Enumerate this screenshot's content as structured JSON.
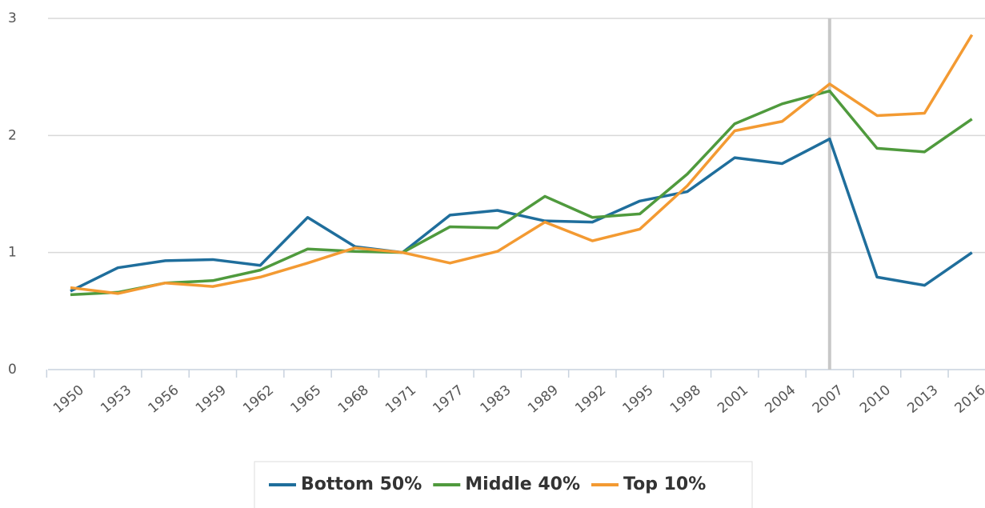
{
  "chart_data": {
    "type": "line",
    "categories": [
      "1950",
      "1953",
      "1956",
      "1959",
      "1962",
      "1965",
      "1968",
      "1971",
      "1977",
      "1983",
      "1989",
      "1992",
      "1995",
      "1998",
      "2001",
      "2004",
      "2007",
      "2010",
      "2013",
      "2016"
    ],
    "series": [
      {
        "name": "Bottom 50%",
        "color": "#1f6e9c",
        "values": [
          0.67,
          0.87,
          0.93,
          0.94,
          0.89,
          1.3,
          1.05,
          1.0,
          1.32,
          1.36,
          1.27,
          1.26,
          1.44,
          1.52,
          1.81,
          1.76,
          1.97,
          0.79,
          0.72,
          1.0
        ]
      },
      {
        "name": "Middle 40%",
        "color": "#4f9a3d",
        "values": [
          0.64,
          0.66,
          0.74,
          0.76,
          0.85,
          1.03,
          1.01,
          1.0,
          1.22,
          1.21,
          1.48,
          1.3,
          1.33,
          1.67,
          2.1,
          2.27,
          2.38,
          1.89,
          1.86,
          2.14
        ]
      },
      {
        "name": "Top 10%",
        "color": "#f39a32",
        "values": [
          0.7,
          0.65,
          0.74,
          0.71,
          0.79,
          0.91,
          1.04,
          1.0,
          0.91,
          1.01,
          1.26,
          1.1,
          1.2,
          1.57,
          2.04,
          2.12,
          2.44,
          2.17,
          2.19,
          2.86
        ]
      }
    ],
    "ylim": [
      0,
      3
    ],
    "yticks": [
      0,
      1,
      2,
      3
    ],
    "grid": true,
    "highlight": "2007",
    "legend": "bottom"
  }
}
